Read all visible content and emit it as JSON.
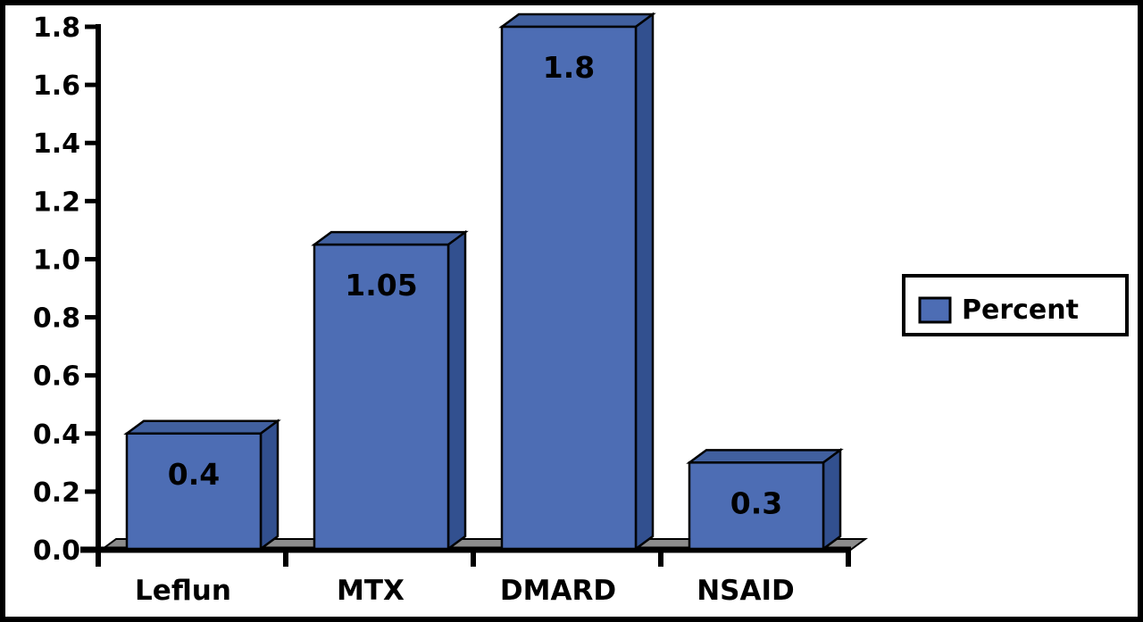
{
  "chart_data": {
    "type": "bar",
    "style": "3d",
    "title": "",
    "xlabel": "",
    "ylabel": "",
    "grid": false,
    "categories": [
      "Leflun",
      "MTX",
      "DMARD",
      "NSAID"
    ],
    "series": [
      {
        "name": "Percent",
        "values": [
          0.4,
          1.05,
          1.8,
          0.3
        ]
      }
    ],
    "value_labels": [
      "0.4",
      "1.05",
      "1.8",
      "0.3"
    ],
    "y_ticks": [
      "0.0",
      "0.2",
      "0.4",
      "0.6",
      "0.8",
      "1.0",
      "1.2",
      "1.4",
      "1.6",
      "1.8"
    ],
    "ylim": [
      0,
      1.8
    ],
    "legend": {
      "label": "Percent",
      "position": "right",
      "swatch_color": "#4D6DB4"
    },
    "colors": {
      "bar_front": "#4D6DB4",
      "bar_top": "#41609F",
      "bar_side": "#32508F",
      "floor": "#8C8C8C",
      "outline": "#000000",
      "background": "#FFFFFF",
      "frame": "#000000"
    }
  }
}
